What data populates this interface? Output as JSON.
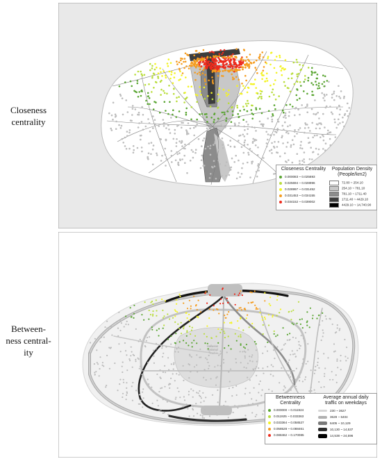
{
  "panels": {
    "top": {
      "label_line1": "Closeness",
      "label_line2": "centrality",
      "legend_left_title": "Closeness Centrality",
      "legend_right_title": "Population Density (People/km2)",
      "centrality_classes": [
        {
          "label": "0.000083 ~ 0.025693",
          "color": "#5aa532"
        },
        {
          "label": "0.025694 ~ 0.028996",
          "color": "#b9dd3c"
        },
        {
          "label": "0.028997 ~ 0.031452",
          "color": "#f3f323"
        },
        {
          "label": "0.031453 ~ 0.034155",
          "color": "#f59c1f"
        },
        {
          "label": "0.034152 ~ 0.039002",
          "color": "#ee2a1c"
        }
      ],
      "density_classes": [
        {
          "label": "72.80 ~ 254.10",
          "color": "#ffffff"
        },
        {
          "label": "254.10 ~ 781.10",
          "color": "#c8c8c8"
        },
        {
          "label": "781.10 ~ 1711.40",
          "color": "#8c8c8c"
        },
        {
          "label": "1711.40 ~ 4429.10",
          "color": "#3c3c3c"
        },
        {
          "label": "4429.10 ~ 14,740.90",
          "color": "#000000"
        }
      ]
    },
    "bottom": {
      "label_line1": "Between-",
      "label_line2": "ness central-",
      "label_line3": "ity",
      "park_label_1": "Hallasan",
      "park_label_2": "National",
      "park_label_3": "Park",
      "legend_left_title": "Betweenness Centrality",
      "legend_right_title": "Average annual daily traffic on weekdays",
      "centrality_classes": [
        {
          "label": "0.000000 ~ 0.011924",
          "color": "#5aa532"
        },
        {
          "label": "0.011925 ~ 0.033363",
          "color": "#b9dd3c"
        },
        {
          "label": "0.033364 ~ 0.058527",
          "color": "#f3f323"
        },
        {
          "label": "0.058528 ~ 0.088461",
          "color": "#f59c1f"
        },
        {
          "label": "0.088462 ~ 0.170085",
          "color": "#ee2a1c"
        }
      ],
      "traffic_classes": [
        {
          "label": "230 ~ 3627",
          "color": "#d6d6d6"
        },
        {
          "label": "3628 ~ 6404",
          "color": "#b0b0b0"
        },
        {
          "label": "6405 ~ 10,129",
          "color": "#7a7a7a"
        },
        {
          "label": "10,130 ~ 14,537",
          "color": "#2e2e2e"
        },
        {
          "label": "14,538 ~ 24,596",
          "color": "#000000"
        }
      ]
    }
  }
}
